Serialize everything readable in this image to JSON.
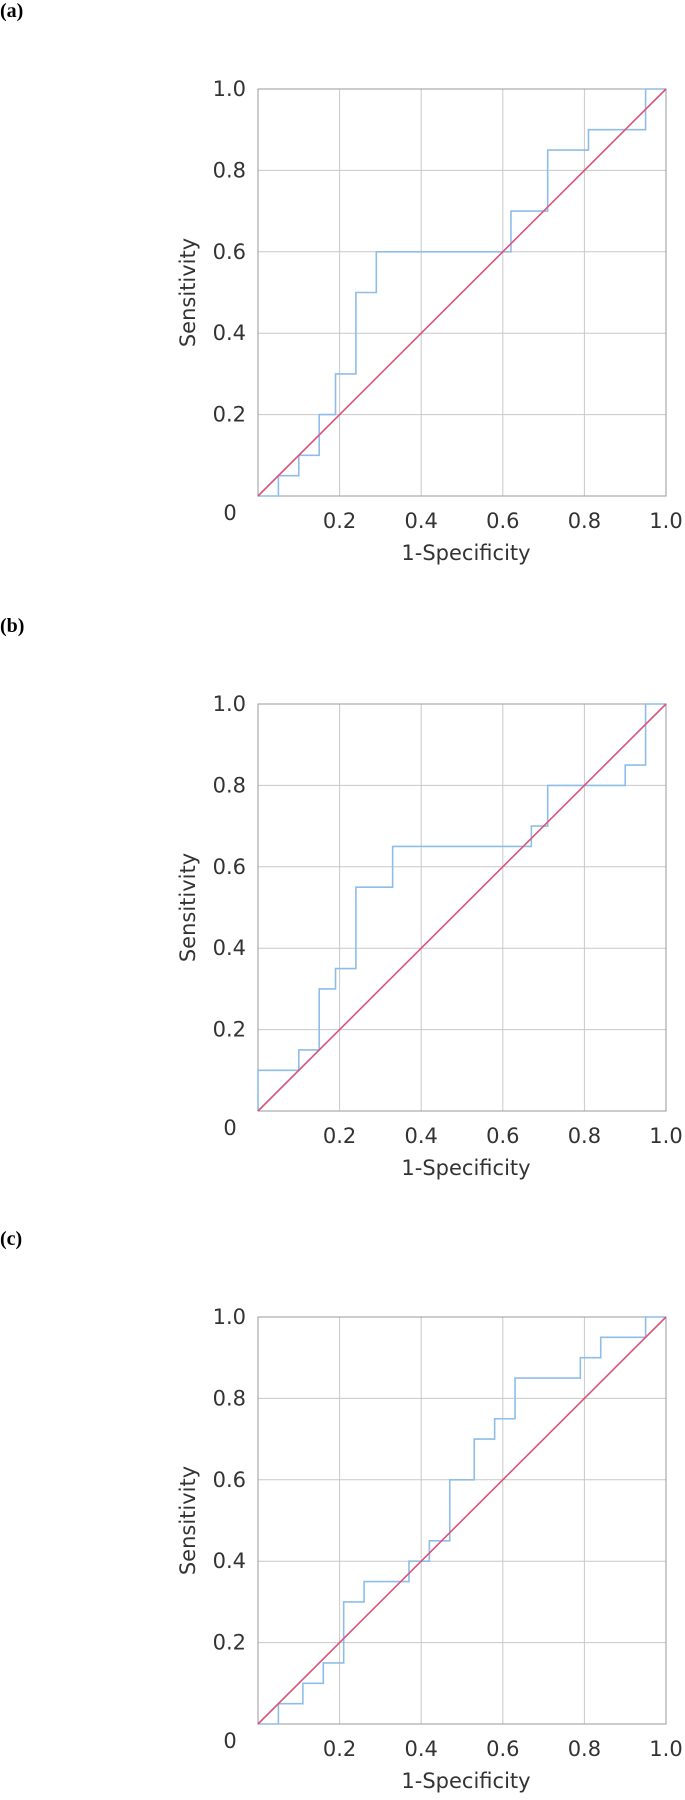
{
  "colors": {
    "roc": "#8fbde8",
    "reference": "#d9547a",
    "grid": "#c8c8c8",
    "frame": "#9a9a9a"
  },
  "chart_data": [
    {
      "panel": "(a)",
      "type": "line",
      "xlabel": "1-Specificity",
      "ylabel": "Sensitivity",
      "xlim": [
        0,
        1
      ],
      "ylim": [
        0,
        1
      ],
      "x_ticks": [
        "0.2",
        "0.4",
        "0.6",
        "0.8",
        "1.0"
      ],
      "y_ticks": [
        "0.2",
        "0.4",
        "0.6",
        "0.8",
        "1.0"
      ],
      "origin_label": "0",
      "grid": true,
      "series": [
        {
          "x": [
            0,
            0.05,
            0.05,
            0.1,
            0.1,
            0.15,
            0.15,
            0.19,
            0.19,
            0.24,
            0.24,
            0.29,
            0.29,
            0.62,
            0.62,
            0.71,
            0.71,
            0.81,
            0.81,
            0.95,
            0.95,
            1.0
          ],
          "y": [
            0,
            0,
            0.05,
            0.05,
            0.1,
            0.1,
            0.2,
            0.2,
            0.3,
            0.3,
            0.5,
            0.5,
            0.6,
            0.6,
            0.7,
            0.7,
            0.85,
            0.85,
            0.9,
            0.9,
            1.0,
            1.0
          ]
        },
        {
          "x": [
            0,
            1
          ],
          "y": [
            0,
            1
          ]
        }
      ]
    },
    {
      "panel": "(b)",
      "type": "line",
      "xlabel": "1-Specificity",
      "ylabel": "Sensitivity",
      "xlim": [
        0,
        1
      ],
      "ylim": [
        0,
        1
      ],
      "x_ticks": [
        "0.2",
        "0.4",
        "0.6",
        "0.8",
        "1.0"
      ],
      "y_ticks": [
        "0.2",
        "0.4",
        "0.6",
        "0.8",
        "1.0"
      ],
      "origin_label": "0",
      "grid": true,
      "series": [
        {
          "x": [
            0,
            0,
            0.1,
            0.1,
            0.15,
            0.15,
            0.19,
            0.19,
            0.24,
            0.24,
            0.33,
            0.33,
            0.67,
            0.67,
            0.71,
            0.71,
            0.9,
            0.9,
            0.95,
            0.95,
            1.0
          ],
          "y": [
            0,
            0.1,
            0.1,
            0.15,
            0.15,
            0.3,
            0.3,
            0.35,
            0.35,
            0.55,
            0.55,
            0.65,
            0.65,
            0.7,
            0.7,
            0.8,
            0.8,
            0.85,
            0.85,
            1.0,
            1.0
          ]
        },
        {
          "x": [
            0,
            1
          ],
          "y": [
            0,
            1
          ]
        }
      ]
    },
    {
      "panel": "(c)",
      "type": "line",
      "xlabel": "1-Specificity",
      "ylabel": "Sensitivity",
      "xlim": [
        0,
        1
      ],
      "ylim": [
        0,
        1
      ],
      "x_ticks": [
        "0.2",
        "0.4",
        "0.6",
        "0.8",
        "1.0"
      ],
      "y_ticks": [
        "0.2",
        "0.4",
        "0.6",
        "0.8",
        "1.0"
      ],
      "origin_label": "0",
      "grid": true,
      "series": [
        {
          "x": [
            0,
            0.05,
            0.05,
            0.11,
            0.11,
            0.16,
            0.16,
            0.21,
            0.21,
            0.26,
            0.26,
            0.37,
            0.37,
            0.42,
            0.42,
            0.47,
            0.47,
            0.53,
            0.53,
            0.58,
            0.58,
            0.63,
            0.63,
            0.79,
            0.79,
            0.84,
            0.84,
            0.95,
            0.95,
            1.0
          ],
          "y": [
            0,
            0,
            0.05,
            0.05,
            0.1,
            0.1,
            0.15,
            0.15,
            0.3,
            0.3,
            0.35,
            0.35,
            0.4,
            0.4,
            0.45,
            0.45,
            0.6,
            0.6,
            0.7,
            0.7,
            0.75,
            0.75,
            0.85,
            0.85,
            0.9,
            0.9,
            0.95,
            0.95,
            1.0,
            1.0
          ]
        },
        {
          "x": [
            0,
            1
          ],
          "y": [
            0,
            1
          ]
        }
      ]
    }
  ]
}
